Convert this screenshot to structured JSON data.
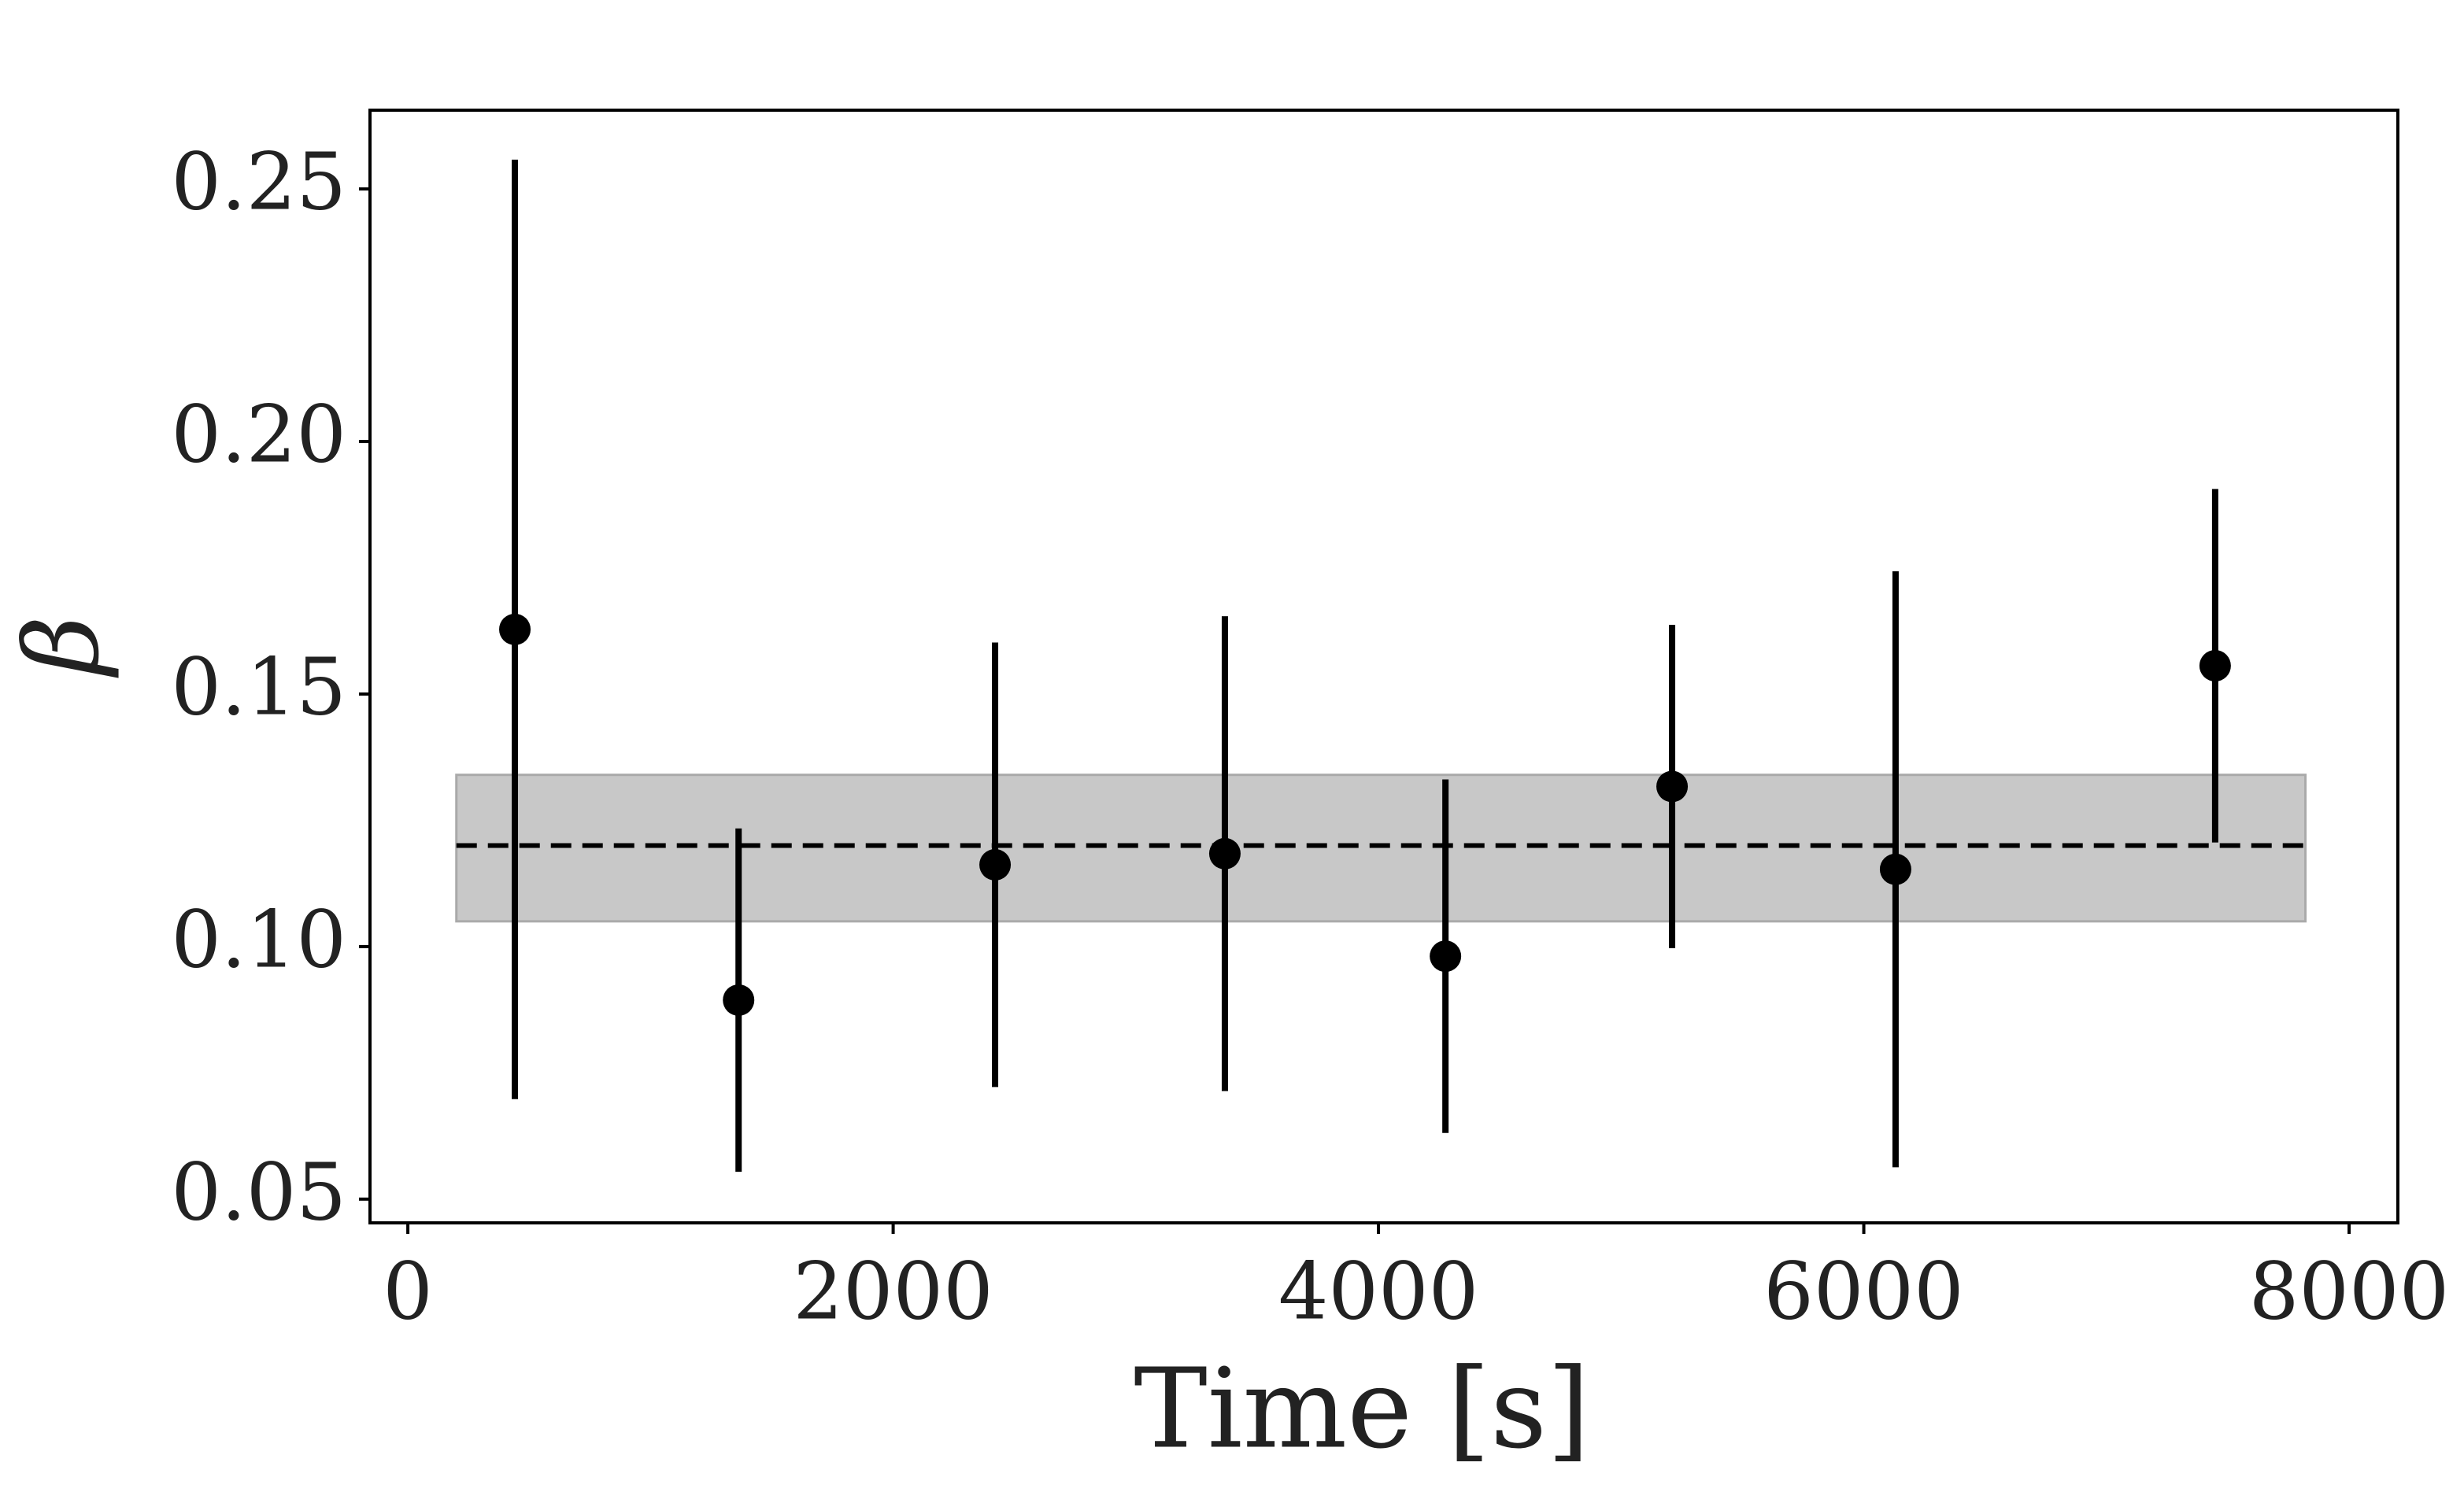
{
  "chart_data": {
    "type": "errorbar",
    "xlabel": "Time [s]",
    "ylabel": "β",
    "series": [
      {
        "color": "#000000",
        "x": [
          441,
          1363,
          2420,
          3367,
          4276,
          5210,
          6131,
          7448
        ],
        "values": [
          0.1628,
          0.0894,
          0.1162,
          0.1184,
          0.0981,
          0.1317,
          0.1153,
          0.1556
        ],
        "errors": [
          0.093,
          0.034,
          0.044,
          0.047,
          0.035,
          0.032,
          0.059,
          0.035
        ]
      }
    ],
    "mean": 0.12,
    "band": {
      "x": [
        200,
        7820
      ],
      "y": [
        0.105,
        0.134
      ],
      "color": "#c8c8c8"
    },
    "xlim": [
      -156,
      8201
    ],
    "ylim": [
      0.0453,
      0.2656
    ],
    "xticks": [
      0,
      2000,
      4000,
      6000,
      8000
    ],
    "yticks": [
      0.05,
      {
        "value": 0.1,
        "label": "0.10"
      },
      0.15,
      {
        "value": 0.2,
        "label": "0.20"
      },
      0.25
    ],
    "grid": false
  }
}
